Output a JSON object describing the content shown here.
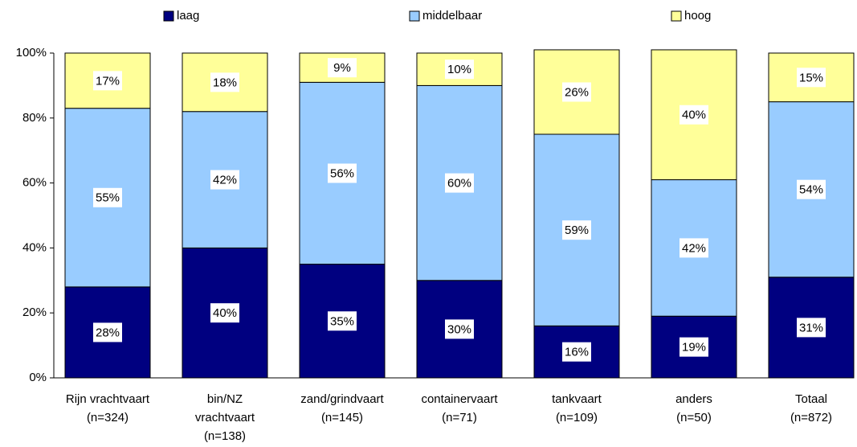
{
  "chart_data": {
    "type": "stacked-bar",
    "categories": [
      [
        "Rijn vrachtvaart",
        "(n=324)"
      ],
      [
        "bin/NZ",
        "vrachtvaart",
        "(n=138)"
      ],
      [
        "zand/grindvaart",
        "(n=145)"
      ],
      [
        "containervaart",
        "(n=71)"
      ],
      [
        "tankvaart",
        "(n=109)"
      ],
      [
        "anders",
        "(n=50)"
      ],
      [
        "Totaal",
        "(n=872)"
      ]
    ],
    "series": [
      {
        "name": "laag",
        "color": "#000080",
        "values": [
          28,
          40,
          35,
          30,
          16,
          19,
          31
        ],
        "value_labels": [
          "28%",
          "40%",
          "35%",
          "30%",
          "16%",
          "19%",
          "31%"
        ]
      },
      {
        "name": "middelbaar",
        "color": "#99ccff",
        "values": [
          55,
          42,
          56,
          60,
          59,
          42,
          54
        ],
        "value_labels": [
          "55%",
          "42%",
          "56%",
          "60%",
          "59%",
          "42%",
          "54%"
        ]
      },
      {
        "name": "hoog",
        "color": "#ffff99",
        "values": [
          17,
          18,
          9,
          10,
          26,
          40,
          15
        ],
        "value_labels": [
          "17%",
          "18%",
          "9%",
          "10%",
          "26%",
          "40%",
          "15%"
        ]
      }
    ],
    "ylim": [
      0,
      100
    ],
    "yticks": [
      {
        "value": 0,
        "label": "0%"
      },
      {
        "value": 20,
        "label": "20%"
      },
      {
        "value": 40,
        "label": "40%"
      },
      {
        "value": 60,
        "label": "60%"
      },
      {
        "value": 80,
        "label": "80%"
      },
      {
        "value": 100,
        "label": "100%"
      }
    ],
    "legend": "top"
  }
}
